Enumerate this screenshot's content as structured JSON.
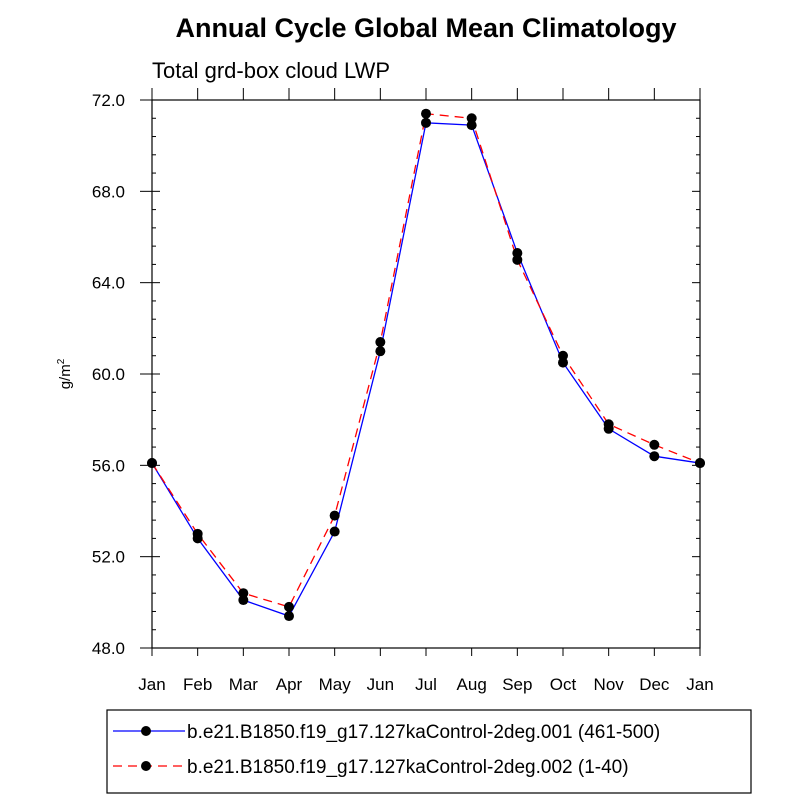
{
  "chart_data": {
    "type": "line",
    "title": "Annual Cycle Global Mean Climatology",
    "subtitle": "Total grd-box cloud LWP",
    "ylabel": "g/m",
    "ylabel_sup": "2",
    "xlabel": "",
    "categories": [
      "Jan",
      "Feb",
      "Mar",
      "Apr",
      "May",
      "Jun",
      "Jul",
      "Aug",
      "Sep",
      "Oct",
      "Nov",
      "Dec",
      "Jan"
    ],
    "ylim": [
      48.0,
      72.0
    ],
    "yticks": [
      48.0,
      52.0,
      56.0,
      60.0,
      64.0,
      68.0,
      72.0
    ],
    "ytick_labels": [
      "48.0",
      "52.0",
      "56.0",
      "60.0",
      "64.0",
      "68.0",
      "72.0"
    ],
    "series": [
      {
        "name": "b.e21.B1850.f19_g17.127kaControl-2deg.001 (461-500)",
        "color": "#0000ff",
        "style": "solid",
        "values": [
          56.1,
          52.8,
          50.1,
          49.4,
          53.1,
          61.0,
          71.0,
          70.9,
          65.3,
          60.5,
          57.6,
          56.4,
          56.1
        ]
      },
      {
        "name": "b.e21.B1850.f19_g17.127kaControl-2deg.002 (1-40)",
        "color": "#ff0000",
        "style": "dashed",
        "values": [
          56.1,
          53.0,
          50.4,
          49.8,
          53.8,
          61.4,
          71.4,
          71.2,
          65.0,
          60.8,
          57.8,
          56.9,
          56.1
        ]
      }
    ]
  }
}
